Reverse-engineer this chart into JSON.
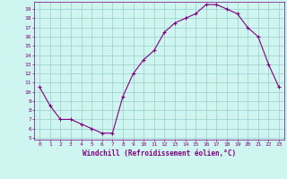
{
  "x": [
    0,
    1,
    2,
    3,
    4,
    5,
    6,
    7,
    8,
    9,
    10,
    11,
    12,
    13,
    14,
    15,
    16,
    17,
    18,
    19,
    20,
    21,
    22,
    23
  ],
  "y": [
    10.5,
    8.5,
    7.0,
    7.0,
    6.5,
    6.0,
    5.5,
    5.5,
    9.5,
    12.0,
    13.5,
    14.5,
    16.5,
    17.5,
    18.0,
    18.5,
    19.5,
    19.5,
    19.0,
    18.5,
    17.0,
    16.0,
    13.0,
    10.5
  ],
  "xlim": [
    -0.5,
    23.5
  ],
  "ylim": [
    4.8,
    19.8
  ],
  "yticks": [
    5,
    6,
    7,
    8,
    9,
    10,
    11,
    12,
    13,
    14,
    15,
    16,
    17,
    18,
    19
  ],
  "xticks": [
    0,
    1,
    2,
    3,
    4,
    5,
    6,
    7,
    8,
    9,
    10,
    11,
    12,
    13,
    14,
    15,
    16,
    17,
    18,
    19,
    20,
    21,
    22,
    23
  ],
  "xlabel": "Windchill (Refroidissement éolien,°C)",
  "line_color": "#800080",
  "marker": "+",
  "bg_color": "#cef5f0",
  "grid_color": "#99cccc",
  "tick_label_color": "#800080",
  "axis_color": "#800080",
  "xlabel_color": "#800080"
}
